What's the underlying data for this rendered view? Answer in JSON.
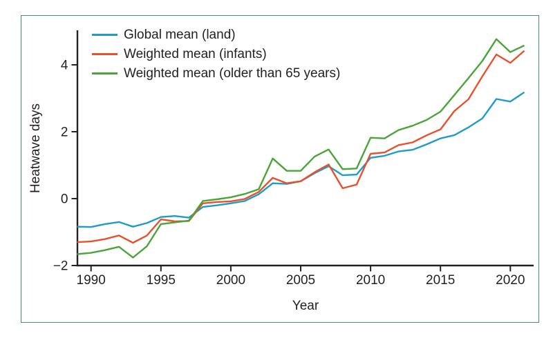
{
  "figure": {
    "y_axis_title": "Heatwave days",
    "x_axis_title": "Year"
  },
  "style": {
    "axis_color": "#231f20",
    "text_color": "#231f20",
    "frame_color": "#478e68",
    "background": "#ffffff"
  },
  "chart_data": {
    "type": "line",
    "title": "",
    "xlabel": "Year",
    "ylabel": "Heatwave days",
    "grid": false,
    "legend_position": "top-left",
    "xlim": [
      1989,
      2021.6
    ],
    "ylim": [
      -2,
      5
    ],
    "xticks": [
      1990,
      1995,
      2000,
      2005,
      2010,
      2015,
      2020
    ],
    "yticks": [
      -2,
      0,
      2,
      4
    ],
    "ytick_labels": [
      "−2",
      "0",
      "2",
      "4"
    ],
    "x": [
      1989,
      1990,
      1991,
      1992,
      1993,
      1994,
      1995,
      1996,
      1997,
      1998,
      1999,
      2000,
      2001,
      2002,
      2003,
      2004,
      2005,
      2006,
      2007,
      2008,
      2009,
      2010,
      2011,
      2012,
      2013,
      2014,
      2015,
      2016,
      2017,
      2018,
      2019,
      2020,
      2021
    ],
    "series": [
      {
        "name": "Global mean (land)",
        "color": "#1f9bc9",
        "values": [
          -0.84,
          -0.85,
          -0.76,
          -0.7,
          -0.84,
          -0.73,
          -0.55,
          -0.52,
          -0.57,
          -0.25,
          -0.2,
          -0.14,
          -0.07,
          0.13,
          0.46,
          0.44,
          0.52,
          0.76,
          0.97,
          0.7,
          0.72,
          1.22,
          1.28,
          1.41,
          1.46,
          1.62,
          1.8,
          1.9,
          2.13,
          2.4,
          2.98,
          2.9,
          3.18
        ]
      },
      {
        "name": "Weighted mean (infants)",
        "color": "#ea4f2c",
        "values": [
          -1.3,
          -1.28,
          -1.21,
          -1.1,
          -1.32,
          -1.1,
          -0.62,
          -0.68,
          -0.67,
          -0.14,
          -0.1,
          -0.08,
          -0.01,
          0.2,
          0.62,
          0.46,
          0.52,
          0.79,
          1.02,
          0.31,
          0.42,
          1.34,
          1.38,
          1.6,
          1.68,
          1.89,
          2.07,
          2.62,
          2.97,
          3.66,
          4.31,
          4.06,
          4.42
        ]
      },
      {
        "name": "Weighted mean (older than 65 years)",
        "color": "#4aa437",
        "values": [
          -1.66,
          -1.62,
          -1.54,
          -1.44,
          -1.76,
          -1.42,
          -0.76,
          -0.71,
          -0.66,
          -0.07,
          -0.02,
          0.04,
          0.14,
          0.28,
          1.2,
          0.83,
          0.83,
          1.26,
          1.47,
          0.88,
          0.9,
          1.82,
          1.8,
          2.05,
          2.18,
          2.35,
          2.6,
          3.1,
          3.6,
          4.12,
          4.77,
          4.38,
          4.58
        ]
      }
    ]
  }
}
